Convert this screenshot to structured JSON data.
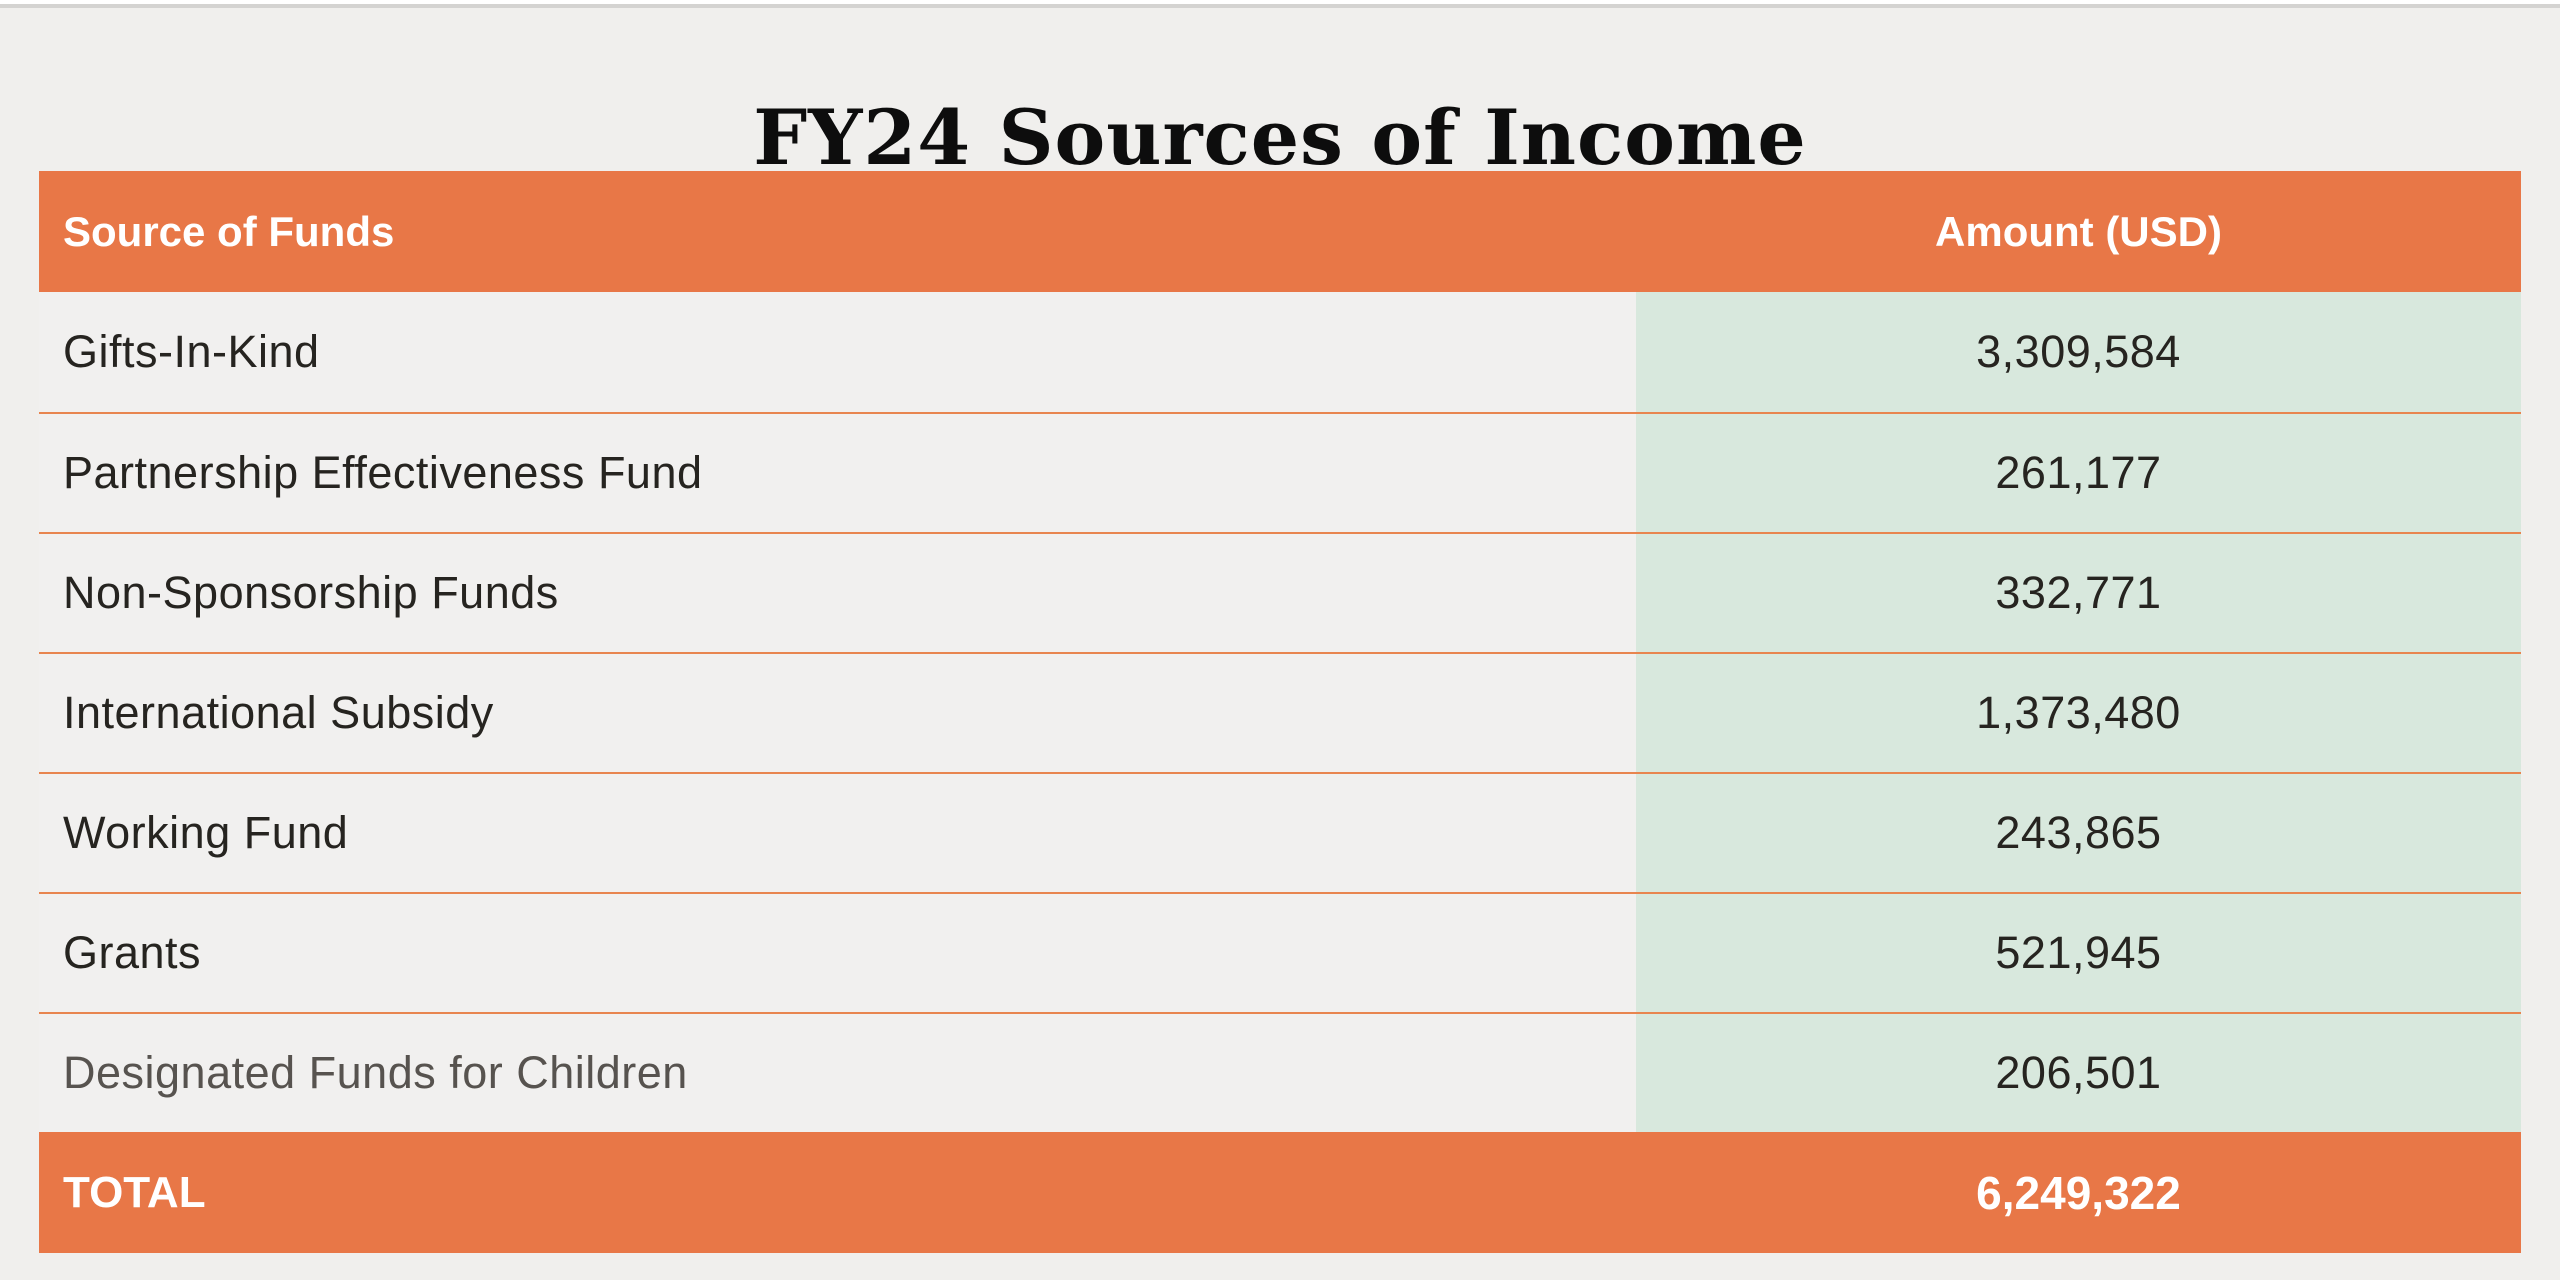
{
  "title": "FY24 Sources of Income",
  "table": {
    "columns": [
      "Source of Funds",
      "Amount (USD)"
    ],
    "rows": [
      {
        "label": "Gifts-In-Kind",
        "amount": "3,309,584"
      },
      {
        "label": "Partnership Effectiveness Fund",
        "amount": "261,177"
      },
      {
        "label": "Non-Sponsorship Funds",
        "amount": "332,771"
      },
      {
        "label": "International Subsidy",
        "amount": "1,373,480"
      },
      {
        "label": "Working Fund",
        "amount": "243,865"
      },
      {
        "label": "Grants",
        "amount": "521,945"
      },
      {
        "label": "Designated Funds for Children",
        "amount": "206,501"
      }
    ],
    "total": {
      "label": "TOTAL",
      "amount": "6,249,322"
    }
  },
  "colors": {
    "accent_orange": "#e87747",
    "separator_orange": "#e8854f",
    "amount_column_green": "#d8e8dd",
    "page_background": "#f0efed",
    "row_text": "#262420",
    "muted_row_text": "#57534f",
    "header_text": "#ffffff"
  },
  "chart_data": {
    "type": "table",
    "title": "FY24 Sources of Income",
    "columns": [
      "Source of Funds",
      "Amount (USD)"
    ],
    "rows": [
      [
        "Gifts-In-Kind",
        3309584
      ],
      [
        "Partnership Effectiveness Fund",
        261177
      ],
      [
        "Non-Sponsorship Funds",
        332771
      ],
      [
        "International Subsidy",
        1373480
      ],
      [
        "Working Fund",
        243865
      ],
      [
        "Grants",
        521945
      ],
      [
        "Designated Funds for Children",
        206501
      ]
    ],
    "total": [
      "TOTAL",
      6249322
    ]
  }
}
